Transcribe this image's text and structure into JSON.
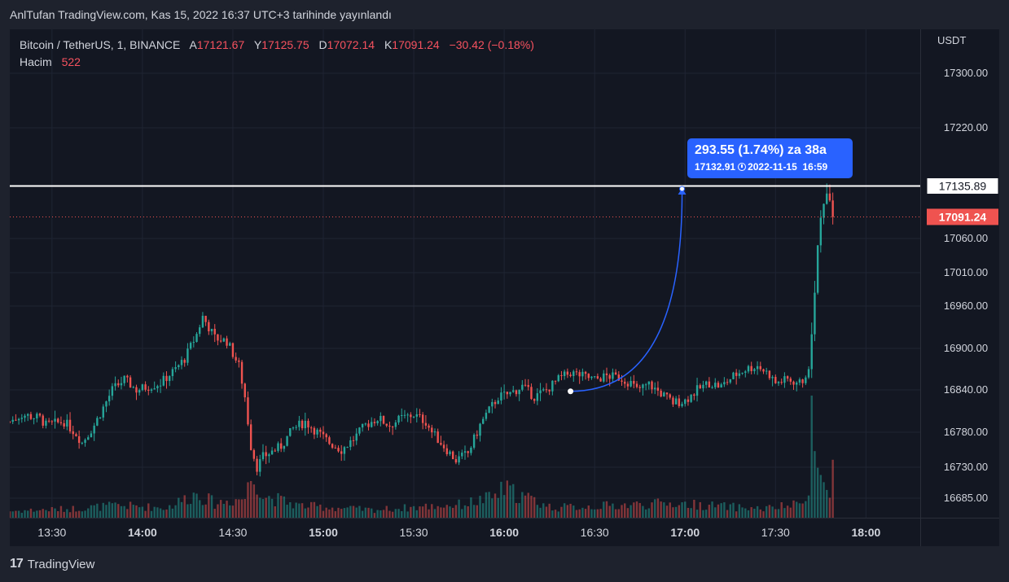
{
  "caption": "AnlTufan TradingView.com, Kas 15, 2022 16:37 UTC+3 tarihinde yayınlandı",
  "legend": {
    "symbol": "Bitcoin / TetherUS, 1, BINANCE",
    "open_label": "A",
    "open": "17121.67",
    "high_label": "Y",
    "high": "17125.75",
    "low_label": "D",
    "low": "17072.14",
    "close_label": "K",
    "close": "17091.24",
    "change": "−30.42 (−0.18%)",
    "volume_label": "Hacim",
    "volume": "522"
  },
  "currency": "USDT",
  "tooltip": {
    "main": "293.55 (1.74%) za 38a",
    "price": "17132.91",
    "date": "2022-11-15",
    "time": "16:59"
  },
  "footer": {
    "logo": "17",
    "brand": "TradingView"
  },
  "colors": {
    "up": "#26a69a",
    "down": "#ef5350",
    "accent": "#2962ff",
    "background": "#131722",
    "frame": "#1e222d",
    "grid": "#1f2433"
  },
  "chart_data": {
    "type": "candlestick",
    "symbol": "Bitcoin / TetherUS",
    "interval": "1",
    "ylim": [
      16660,
      17340
    ],
    "xlim": [
      "13:16",
      "18:18"
    ],
    "y_ticks": [
      "17300.00",
      "17220.00",
      "17060.00",
      "17010.00",
      "16960.00",
      "16900.00",
      "16840.00",
      "16780.00",
      "16730.00",
      "16685.00"
    ],
    "x_ticks": [
      "13:30",
      "14:00",
      "14:30",
      "15:00",
      "15:30",
      "16:00",
      "16:30",
      "17:00",
      "17:30",
      "18:00"
    ],
    "x_tick_bold": [
      false,
      true,
      false,
      true,
      false,
      true,
      false,
      true,
      false,
      true
    ],
    "horizontal_line": {
      "value": 17135.89,
      "label": "17135.89"
    },
    "last_price": {
      "value": 17091.24,
      "label": "17091.24"
    },
    "projection": {
      "from_time": "16:22",
      "from_price": 16838,
      "to_time": "16:59",
      "to_price": 17132.91
    },
    "start_time": "13:16",
    "close_path": [
      [
        0,
        16795
      ],
      [
        4,
        16805
      ],
      [
        10,
        16800
      ],
      [
        12,
        16790
      ],
      [
        18,
        16795
      ],
      [
        22,
        16778
      ],
      [
        24,
        16765
      ],
      [
        28,
        16790
      ],
      [
        34,
        16840
      ],
      [
        38,
        16855
      ],
      [
        42,
        16840
      ],
      [
        46,
        16845
      ],
      [
        50,
        16850
      ],
      [
        55,
        16870
      ],
      [
        58,
        16885
      ],
      [
        62,
        16920
      ],
      [
        64,
        16945
      ],
      [
        66,
        16930
      ],
      [
        68,
        16915
      ],
      [
        72,
        16910
      ],
      [
        76,
        16875
      ],
      [
        78,
        16830
      ],
      [
        80,
        16760
      ],
      [
        82,
        16730
      ],
      [
        84,
        16745
      ],
      [
        86,
        16750
      ],
      [
        90,
        16760
      ],
      [
        94,
        16785
      ],
      [
        98,
        16795
      ],
      [
        102,
        16780
      ],
      [
        106,
        16765
      ],
      [
        110,
        16755
      ],
      [
        114,
        16770
      ],
      [
        118,
        16790
      ],
      [
        122,
        16800
      ],
      [
        126,
        16790
      ],
      [
        130,
        16800
      ],
      [
        134,
        16805
      ],
      [
        138,
        16795
      ],
      [
        140,
        16780
      ],
      [
        144,
        16760
      ],
      [
        148,
        16740
      ],
      [
        152,
        16750
      ],
      [
        154,
        16770
      ],
      [
        156,
        16790
      ],
      [
        158,
        16805
      ],
      [
        162,
        16830
      ],
      [
        166,
        16835
      ],
      [
        170,
        16845
      ],
      [
        174,
        16830
      ],
      [
        178,
        16840
      ],
      [
        182,
        16855
      ],
      [
        186,
        16865
      ],
      [
        190,
        16860
      ],
      [
        194,
        16855
      ],
      [
        198,
        16860
      ],
      [
        202,
        16858
      ],
      [
        206,
        16850
      ],
      [
        208,
        16840
      ],
      [
        212,
        16848
      ],
      [
        216,
        16835
      ],
      [
        220,
        16822
      ],
      [
        224,
        16825
      ],
      [
        228,
        16840
      ],
      [
        232,
        16850
      ],
      [
        236,
        16845
      ],
      [
        240,
        16860
      ],
      [
        244,
        16870
      ],
      [
        248,
        16875
      ],
      [
        252,
        16862
      ],
      [
        254,
        16850
      ],
      [
        258,
        16855
      ],
      [
        262,
        16850
      ],
      [
        264,
        16858
      ],
      [
        265,
        16870
      ],
      [
        266,
        16920
      ],
      [
        267,
        16980
      ],
      [
        268,
        17050
      ],
      [
        269,
        17090
      ],
      [
        270,
        17110
      ],
      [
        271,
        17125
      ],
      [
        272,
        17115
      ],
      [
        273,
        17091.24
      ]
    ],
    "volume_path": [
      [
        0,
        60
      ],
      [
        20,
        80
      ],
      [
        36,
        110
      ],
      [
        52,
        90
      ],
      [
        62,
        220
      ],
      [
        68,
        130
      ],
      [
        78,
        180
      ],
      [
        80,
        360
      ],
      [
        82,
        340
      ],
      [
        84,
        200
      ],
      [
        96,
        110
      ],
      [
        120,
        70
      ],
      [
        150,
        120
      ],
      [
        160,
        180
      ],
      [
        164,
        260
      ],
      [
        180,
        90
      ],
      [
        220,
        130
      ],
      [
        250,
        80
      ],
      [
        262,
        120
      ],
      [
        265,
        200
      ],
      [
        266,
        1100
      ],
      [
        267,
        600
      ],
      [
        268,
        450
      ],
      [
        270,
        320
      ],
      [
        272,
        180
      ],
      [
        273,
        522
      ]
    ]
  }
}
